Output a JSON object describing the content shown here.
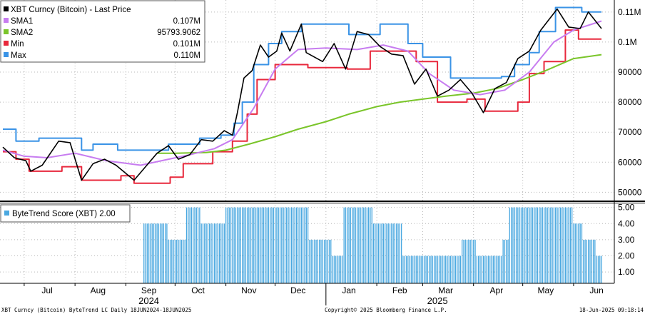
{
  "colors": {
    "price": "#000000",
    "sma1": "#c77cf0",
    "sma2": "#7ac52a",
    "min": "#e8283c",
    "max": "#3a93e6",
    "score": "#4aa8e0"
  },
  "legend_top": [
    {
      "name": "XBT Curncy (Bitcoin) - Last Price",
      "value": "",
      "color": "#000000"
    },
    {
      "name": "SMA1",
      "value": "0.107M",
      "color": "#c77cf0"
    },
    {
      "name": "SMA2",
      "value": "95793.9062",
      "color": "#7ac52a"
    },
    {
      "name": "Min",
      "value": "0.101M",
      "color": "#e8283c"
    },
    {
      "name": "Max",
      "value": "0.110M",
      "color": "#3a93e6"
    }
  ],
  "legend_bottom": {
    "name": "ByteTrend Score (XBT) 2.00",
    "color": "#4aa8e0"
  },
  "footer": {
    "left": "XBT Curncy (Bitcoin) ByteTrend LC  Daily 18JUN2024-18JUN2025",
    "center": "Copyright© 2025 Bloomberg Finance L.P.",
    "right": "18-Jun-2025 09:18:14"
  },
  "chart_data": [
    {
      "type": "line",
      "x_start": "2024-06-18",
      "x_end": "2025-06-18",
      "months": [
        "Jul",
        "Aug",
        "Sep",
        "Oct",
        "Nov",
        "Dec",
        "Jan",
        "Feb",
        "Mar",
        "Apr",
        "May",
        "Jun"
      ],
      "years": [
        "2024",
        "2025"
      ],
      "ylim": [
        47000,
        114000
      ],
      "yticks": [
        "0.11M",
        "0.1M",
        "90000",
        "80000",
        "70000",
        "60000",
        "50000"
      ],
      "ytick_values": [
        110000,
        100000,
        90000,
        80000,
        70000,
        60000,
        50000
      ],
      "series": [
        {
          "name": "XBT Curncy (Bitcoin) - Last Price",
          "key": "price",
          "x": [
            "2024-06-18",
            "2024-06-25",
            "2024-07-02",
            "2024-07-05",
            "2024-07-12",
            "2024-07-22",
            "2024-07-29",
            "2024-08-05",
            "2024-08-12",
            "2024-08-19",
            "2024-08-26",
            "2024-09-06",
            "2024-09-13",
            "2024-09-20",
            "2024-09-27",
            "2024-10-03",
            "2024-10-10",
            "2024-10-17",
            "2024-10-24",
            "2024-10-31",
            "2024-11-05",
            "2024-11-08",
            "2024-11-12",
            "2024-11-17",
            "2024-11-22",
            "2024-11-27",
            "2024-12-02",
            "2024-12-05",
            "2024-12-10",
            "2024-12-17",
            "2024-12-20",
            "2024-12-30",
            "2025-01-06",
            "2025-01-13",
            "2025-01-20",
            "2025-01-27",
            "2025-02-03",
            "2025-02-10",
            "2025-02-17",
            "2025-02-24",
            "2025-03-03",
            "2025-03-10",
            "2025-03-17",
            "2025-03-24",
            "2025-03-31",
            "2025-04-07",
            "2025-04-14",
            "2025-04-21",
            "2025-04-28",
            "2025-05-05",
            "2025-05-12",
            "2025-05-22",
            "2025-05-29",
            "2025-06-05",
            "2025-06-10",
            "2025-06-18"
          ],
          "y": [
            65000,
            61500,
            60500,
            57000,
            59000,
            67000,
            66500,
            54000,
            59500,
            61000,
            59000,
            54000,
            58500,
            63000,
            65500,
            61000,
            62500,
            67500,
            67000,
            70500,
            69000,
            76500,
            88000,
            90500,
            99000,
            95000,
            97000,
            103000,
            97000,
            106000,
            96500,
            93500,
            99500,
            91000,
            103500,
            102500,
            98500,
            96000,
            95500,
            86000,
            91000,
            82000,
            84000,
            87500,
            83000,
            76500,
            84500,
            86500,
            94500,
            97000,
            104000,
            111000,
            105000,
            104500,
            110000,
            104500
          ]
        },
        {
          "name": "SMA1",
          "key": "sma1",
          "x": [
            "2024-06-18",
            "2024-07-01",
            "2024-07-15",
            "2024-08-01",
            "2024-08-20",
            "2024-09-10",
            "2024-09-27",
            "2024-10-10",
            "2024-10-25",
            "2024-11-05",
            "2024-11-18",
            "2024-12-01",
            "2024-12-15",
            "2025-01-01",
            "2025-01-20",
            "2025-02-05",
            "2025-02-20",
            "2025-03-05",
            "2025-03-20",
            "2025-04-05",
            "2025-04-20",
            "2025-05-05",
            "2025-05-20",
            "2025-06-01",
            "2025-06-18"
          ],
          "y": [
            64000,
            62000,
            61500,
            63000,
            60500,
            59000,
            61000,
            62500,
            64500,
            67500,
            78000,
            91000,
            97500,
            98000,
            97500,
            99000,
            97000,
            89500,
            84000,
            82500,
            84000,
            90000,
            100000,
            104000,
            107000
          ]
        },
        {
          "name": "SMA2",
          "key": "sma2",
          "x": [
            "2024-09-20",
            "2024-10-01",
            "2024-10-20",
            "2024-11-01",
            "2024-11-15",
            "2024-12-01",
            "2024-12-15",
            "2025-01-01",
            "2025-01-15",
            "2025-02-01",
            "2025-02-15",
            "2025-03-01",
            "2025-03-15",
            "2025-04-01",
            "2025-04-15",
            "2025-05-01",
            "2025-05-15",
            "2025-06-01",
            "2025-06-18"
          ],
          "y": [
            63000,
            63000,
            63200,
            64000,
            66000,
            68500,
            71000,
            73500,
            76000,
            78500,
            80000,
            81000,
            82000,
            83000,
            84500,
            87500,
            90500,
            94500,
            95800
          ]
        },
        {
          "name": "Min",
          "key": "min",
          "x": [
            "2024-06-18",
            "2024-06-26",
            "2024-07-04",
            "2024-07-24",
            "2024-08-05",
            "2024-08-29",
            "2024-09-06",
            "2024-09-28",
            "2024-10-06",
            "2024-10-24",
            "2024-11-05",
            "2024-11-14",
            "2024-11-20",
            "2024-12-01",
            "2024-12-21",
            "2025-01-14",
            "2025-01-28",
            "2025-02-25",
            "2025-03-10",
            "2025-03-28",
            "2025-04-08",
            "2025-04-28",
            "2025-05-05",
            "2025-05-14",
            "2025-05-27",
            "2025-06-04",
            "2025-06-18"
          ],
          "y": [
            63500,
            61000,
            57000,
            58500,
            54000,
            55500,
            53000,
            55000,
            59500,
            63500,
            67000,
            76000,
            87500,
            92500,
            91500,
            91000,
            97000,
            93500,
            80000,
            81000,
            77000,
            80000,
            89500,
            93500,
            104000,
            101000,
            101000
          ]
        },
        {
          "name": "Max",
          "key": "max",
          "x": [
            "2024-06-18",
            "2024-06-26",
            "2024-07-10",
            "2024-08-05",
            "2024-08-12",
            "2024-08-27",
            "2024-09-27",
            "2024-10-16",
            "2024-10-29",
            "2024-11-06",
            "2024-11-11",
            "2024-11-18",
            "2024-11-27",
            "2024-12-05",
            "2024-12-17",
            "2025-01-15",
            "2025-02-03",
            "2025-02-20",
            "2025-03-01",
            "2025-03-18",
            "2025-04-18",
            "2025-04-26",
            "2025-05-05",
            "2025-05-11",
            "2025-05-21",
            "2025-06-06",
            "2025-06-18"
          ],
          "y": [
            71000,
            67000,
            68000,
            64000,
            66000,
            64000,
            66000,
            68000,
            69000,
            73000,
            80000,
            92500,
            99500,
            103500,
            106000,
            102500,
            106000,
            99500,
            95000,
            88000,
            88500,
            92500,
            96500,
            103500,
            111500,
            110000,
            110000
          ]
        }
      ]
    },
    {
      "type": "bar",
      "name": "ByteTrend Score (XBT)",
      "ylim": [
        0.3,
        5.25
      ],
      "yticks": [
        "5.00",
        "4.00",
        "3.00",
        "2.00",
        "1.00"
      ],
      "ytick_values": [
        5,
        4,
        3,
        2,
        1
      ],
      "segments": [
        {
          "from": "2024-09-12",
          "to": "2024-09-26",
          "value": 4
        },
        {
          "from": "2024-09-27",
          "to": "2024-10-07",
          "value": 3
        },
        {
          "from": "2024-10-08",
          "to": "2024-10-16",
          "value": 5
        },
        {
          "from": "2024-10-17",
          "to": "2024-10-31",
          "value": 4
        },
        {
          "from": "2024-11-01",
          "to": "2024-12-21",
          "value": 5
        },
        {
          "from": "2024-12-22",
          "to": "2025-01-04",
          "value": 3
        },
        {
          "from": "2025-01-05",
          "to": "2025-01-11",
          "value": 2
        },
        {
          "from": "2025-01-12",
          "to": "2025-01-29",
          "value": 5
        },
        {
          "from": "2025-01-30",
          "to": "2025-02-16",
          "value": 4
        },
        {
          "from": "2025-02-17",
          "to": "2025-03-24",
          "value": 2
        },
        {
          "from": "2025-03-25",
          "to": "2025-04-02",
          "value": 3
        },
        {
          "from": "2025-04-03",
          "to": "2025-04-18",
          "value": 2
        },
        {
          "from": "2025-04-19",
          "to": "2025-04-22",
          "value": 3
        },
        {
          "from": "2025-04-23",
          "to": "2025-05-31",
          "value": 5
        },
        {
          "from": "2025-06-01",
          "to": "2025-06-06",
          "value": 4
        },
        {
          "from": "2025-06-07",
          "to": "2025-06-14",
          "value": 3
        },
        {
          "from": "2025-06-15",
          "to": "2025-06-18",
          "value": 2
        }
      ]
    }
  ]
}
